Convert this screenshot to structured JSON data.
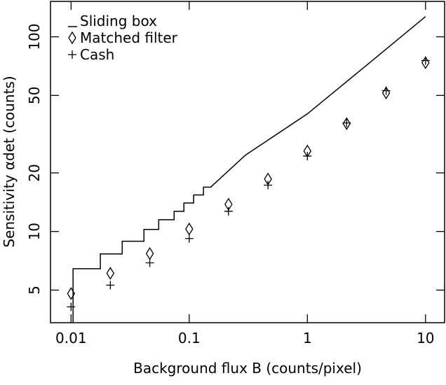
{
  "chart_data": {
    "type": "line",
    "x_label": "Background flux B (counts/pixel)",
    "y_label": "Sensitivity αdet (counts)",
    "xscale": "log",
    "yscale": "log",
    "xlim": [
      0.0067,
      14.5
    ],
    "ylim": [
      3.4,
      152
    ],
    "xticks": [
      0.01,
      0.1,
      1,
      10
    ],
    "yticks": [
      5,
      10,
      20,
      50,
      100
    ],
    "legend": "upper left",
    "series": [
      {
        "name": "Sliding box",
        "color": "#000000",
        "marker": "none",
        "x": [
          0.0104,
          0.0104,
          0.0177,
          0.0177,
          0.0271,
          0.0271,
          0.0414,
          0.0414,
          0.0552,
          0.0552,
          0.0745,
          0.0745,
          0.0902,
          0.0902,
          0.109,
          0.109,
          0.132,
          0.132,
          0.152,
          0.3,
          1,
          3,
          10
        ],
        "values": [
          3.4,
          6.44,
          6.44,
          7.67,
          7.67,
          8.91,
          8.91,
          10.25,
          10.25,
          11.5,
          11.5,
          12.7,
          12.7,
          14.0,
          14.0,
          15.4,
          15.4,
          16.9,
          16.9,
          24.7,
          40.2,
          69.5,
          127
        ]
      },
      {
        "name": "Matched filter",
        "color": "#000000",
        "marker": "diamond",
        "x": [
          0.01,
          0.0215,
          0.0464,
          0.1,
          0.215,
          0.464,
          1,
          2.15,
          4.64,
          10
        ],
        "values": [
          4.8,
          6.1,
          7.7,
          10.3,
          13.8,
          18.6,
          25.9,
          35.8,
          51.5,
          73.6
        ]
      },
      {
        "name": "Cash",
        "color": "#000000",
        "marker": "plus",
        "x": [
          0.01,
          0.0215,
          0.0464,
          0.1,
          0.215,
          0.464,
          1,
          2.15,
          4.64,
          10
        ],
        "values": [
          4.1,
          5.3,
          6.9,
          9.2,
          12.7,
          17.3,
          24.4,
          36.1,
          52.9,
          75.5
        ]
      }
    ]
  }
}
